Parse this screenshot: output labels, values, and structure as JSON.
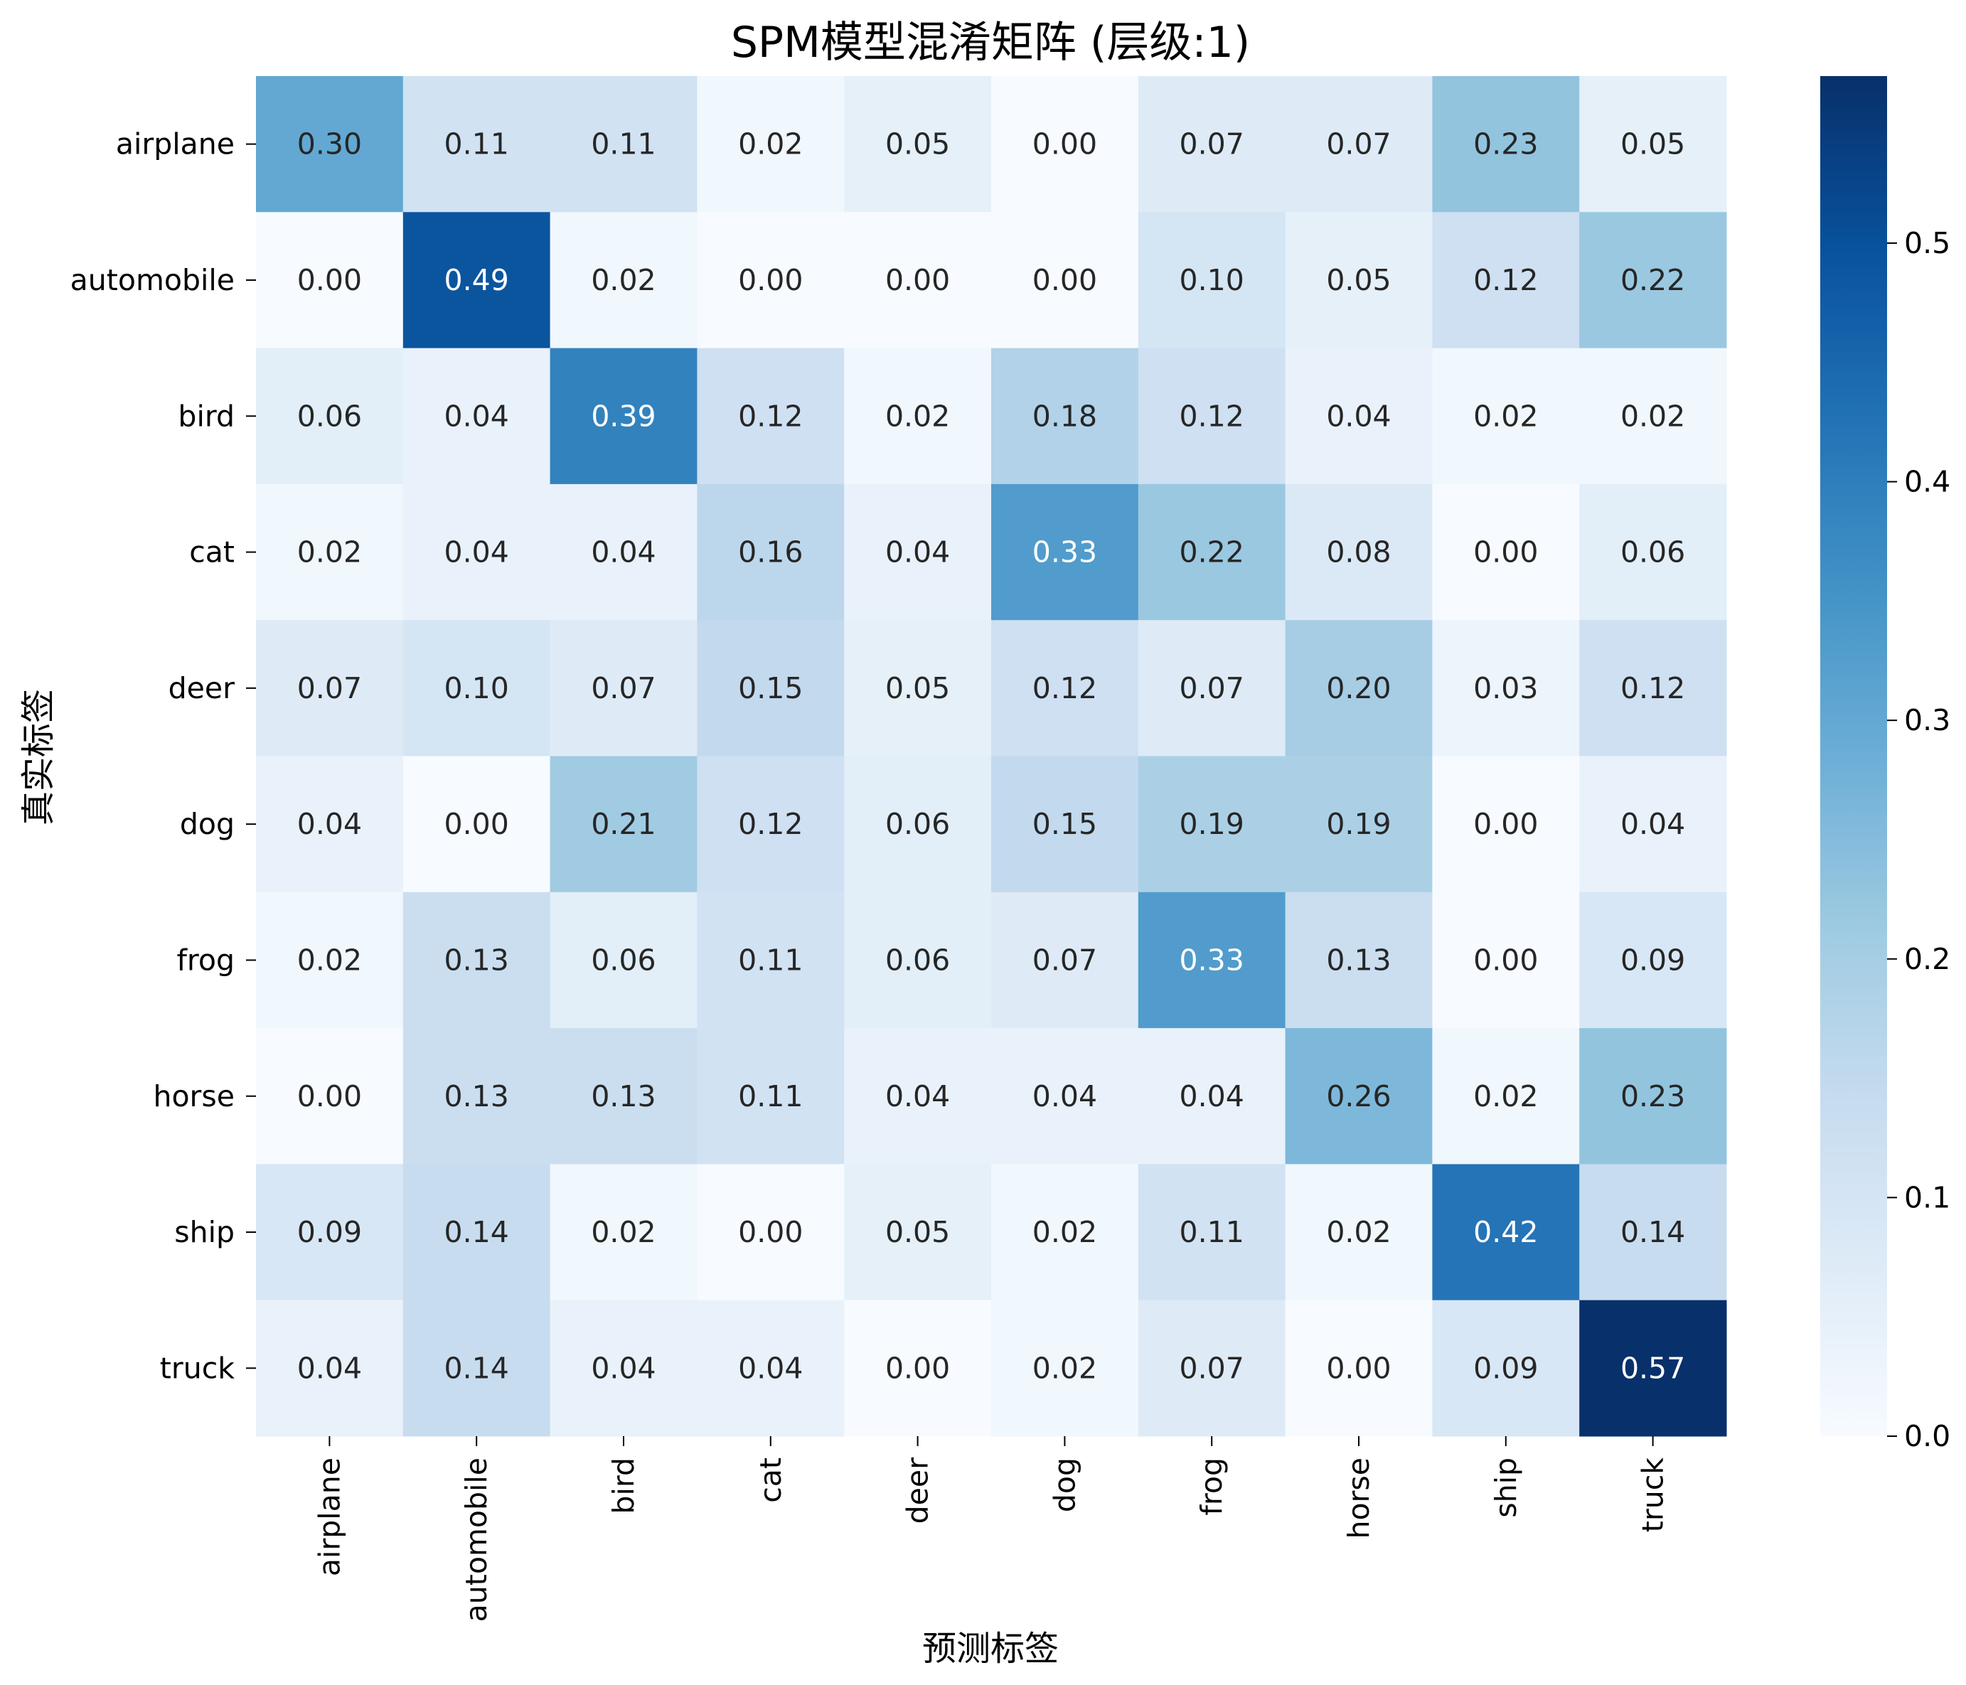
{
  "chart_data": {
    "type": "heatmap",
    "title": "SPM模型混淆矩阵 (层级:1)",
    "xlabel": "预测标签",
    "ylabel": "真实标签",
    "x_categories": [
      "airplane",
      "automobile",
      "bird",
      "cat",
      "deer",
      "dog",
      "frog",
      "horse",
      "ship",
      "truck"
    ],
    "y_categories": [
      "airplane",
      "automobile",
      "bird",
      "cat",
      "deer",
      "dog",
      "frog",
      "horse",
      "ship",
      "truck"
    ],
    "values": [
      [
        0.3,
        0.11,
        0.11,
        0.02,
        0.05,
        0.0,
        0.07,
        0.07,
        0.23,
        0.05
      ],
      [
        0.0,
        0.49,
        0.02,
        0.0,
        0.0,
        0.0,
        0.1,
        0.05,
        0.12,
        0.22
      ],
      [
        0.06,
        0.04,
        0.39,
        0.12,
        0.02,
        0.18,
        0.12,
        0.04,
        0.02,
        0.02
      ],
      [
        0.02,
        0.04,
        0.04,
        0.16,
        0.04,
        0.33,
        0.22,
        0.08,
        0.0,
        0.06
      ],
      [
        0.07,
        0.1,
        0.07,
        0.15,
        0.05,
        0.12,
        0.07,
        0.2,
        0.03,
        0.12
      ],
      [
        0.04,
        0.0,
        0.21,
        0.12,
        0.06,
        0.15,
        0.19,
        0.19,
        0.0,
        0.04
      ],
      [
        0.02,
        0.13,
        0.06,
        0.11,
        0.06,
        0.07,
        0.33,
        0.13,
        0.0,
        0.09
      ],
      [
        0.0,
        0.13,
        0.13,
        0.11,
        0.04,
        0.04,
        0.04,
        0.26,
        0.02,
        0.23
      ],
      [
        0.09,
        0.14,
        0.02,
        0.0,
        0.05,
        0.02,
        0.11,
        0.02,
        0.42,
        0.14
      ],
      [
        0.04,
        0.14,
        0.04,
        0.04,
        0.0,
        0.02,
        0.07,
        0.0,
        0.09,
        0.57
      ]
    ],
    "value_format": "0.00",
    "colorbar": {
      "range": [
        0.0,
        0.57
      ],
      "ticks": [
        "0.0",
        "0.1",
        "0.2",
        "0.3",
        "0.4",
        "0.5"
      ],
      "colormap": "Blues"
    },
    "colors": {
      "low": "#f7fbff",
      "high": "#08306b",
      "text_dark": "#262626",
      "text_light": "#ffffff"
    },
    "grid": false,
    "legend": "colorbar-right"
  }
}
